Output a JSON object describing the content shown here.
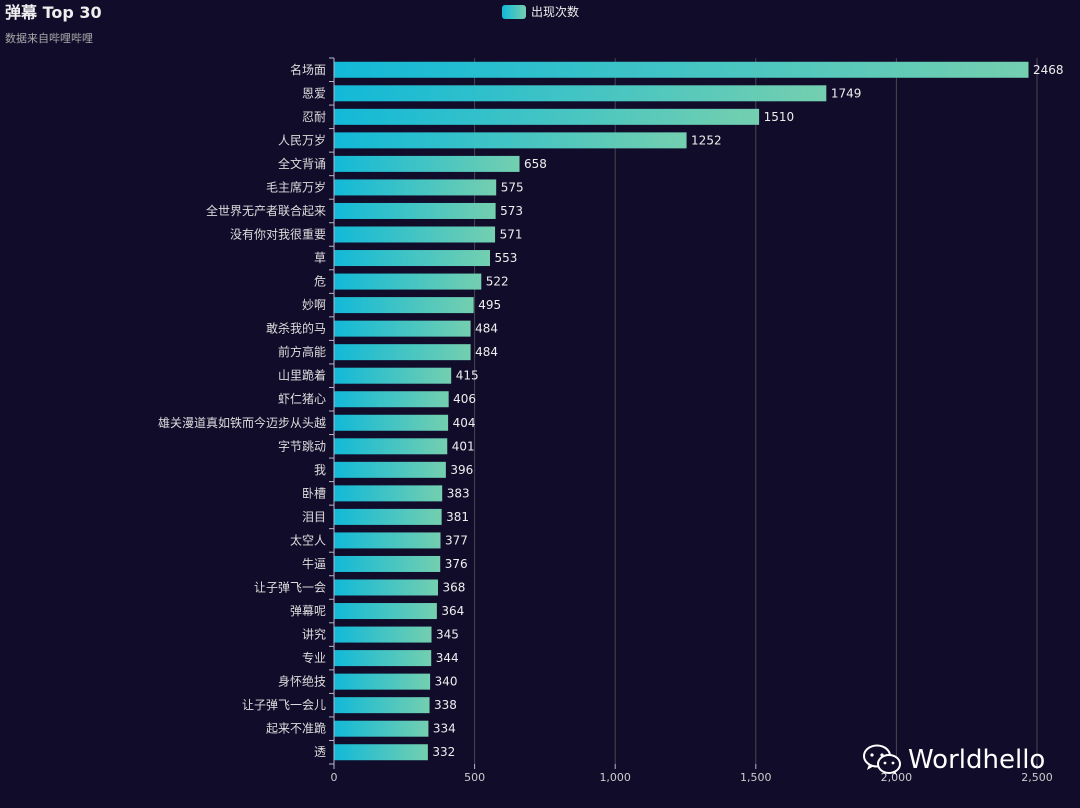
{
  "chart_data": {
    "type": "bar",
    "orientation": "horizontal",
    "title": "弹幕 Top 30",
    "subtitle": "数据来自哔哩哔哩",
    "legend": [
      "出现次数"
    ],
    "legend_position": "top-center",
    "series": [
      {
        "name": "出现次数"
      }
    ],
    "categories": [
      "名场面",
      "恩爱",
      "忍耐",
      "人民万岁",
      "全文背诵",
      "毛主席万岁",
      "全世界无产者联合起来",
      "没有你对我很重要",
      "草",
      "危",
      "妙啊",
      "敢杀我的马",
      "前方高能",
      "山里跪着",
      "虾仁猪心",
      "雄关漫道真如铁而今迈步从头越",
      "字节跳动",
      "我",
      "卧槽",
      "泪目",
      "太空人",
      "牛逼",
      "让子弹飞一会",
      "弹幕呢",
      "讲究",
      "专业",
      "身怀绝技",
      "让子弹飞一会儿",
      "起来不准跪",
      "透"
    ],
    "values": [
      2468,
      1749,
      1510,
      1252,
      658,
      575,
      573,
      571,
      553,
      522,
      495,
      484,
      484,
      415,
      406,
      404,
      401,
      396,
      383,
      381,
      377,
      376,
      368,
      364,
      345,
      344,
      340,
      338,
      334,
      332
    ],
    "x_ticks": [
      "0",
      "500",
      "1,000",
      "1,500",
      "2,000",
      "2,500"
    ],
    "x_tick_values": [
      0,
      500,
      1000,
      1500,
      2000,
      2500
    ],
    "xlim": [
      0,
      2500
    ],
    "grid": true
  },
  "colors": {
    "background": "#100c2a",
    "bar_start": "#12b9d8",
    "bar_end": "#74cfaf"
  },
  "watermark": {
    "text": "Worldhello",
    "icon": "wechat-icon"
  }
}
